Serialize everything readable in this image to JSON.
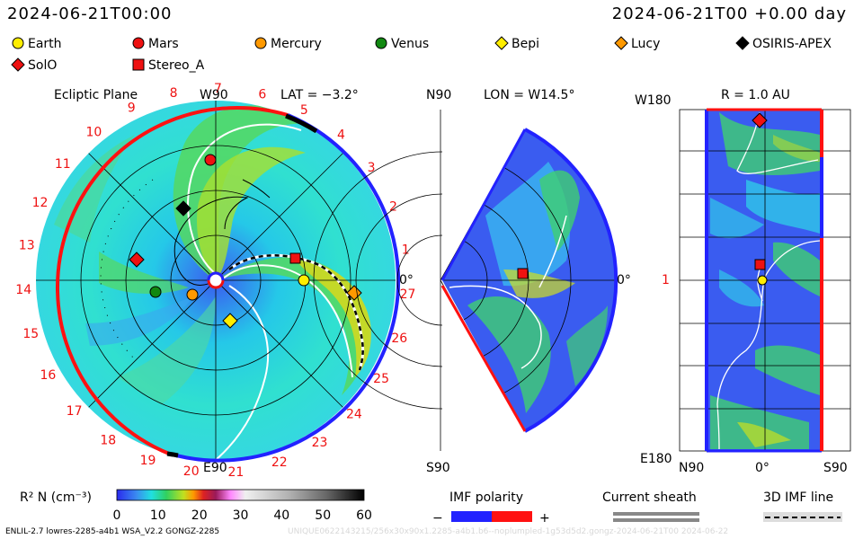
{
  "header": {
    "datetime_left": "2024-06-21T00:00",
    "datetime_right": "2024-06-21T00 +0.00 day"
  },
  "legend": {
    "items": [
      {
        "label": "Earth",
        "color": "#ffee00",
        "shape": "circle"
      },
      {
        "label": "Mars",
        "color": "#ee1111",
        "shape": "circle"
      },
      {
        "label": "Mercury",
        "color": "#ff9900",
        "shape": "circle"
      },
      {
        "label": "Venus",
        "color": "#118811",
        "shape": "circle"
      },
      {
        "label": "Bepi",
        "color": "#ffee00",
        "shape": "diamond"
      },
      {
        "label": "Lucy",
        "color": "#ff9900",
        "shape": "diamond"
      },
      {
        "label": "OSIRIS-APEX",
        "color": "#000000",
        "shape": "diamond"
      },
      {
        "label": "SolO",
        "color": "#ee1111",
        "shape": "diamond"
      },
      {
        "label": "Stereo_A",
        "color": "#ee1111",
        "shape": "square"
      }
    ]
  },
  "panels": {
    "ecliptic": {
      "title": "Ecliptic Plane",
      "lat_label": "LAT = −3.2°",
      "top_label": "W90",
      "bottom_label": "E90",
      "right_label": "0°",
      "carrington": [
        "1",
        "2",
        "3",
        "4",
        "5",
        "6",
        "7",
        "8",
        "9",
        "10",
        "11",
        "12",
        "13",
        "14",
        "15",
        "16",
        "17",
        "18",
        "19",
        "20",
        "21",
        "22",
        "23",
        "24",
        "25",
        "26",
        "27"
      ]
    },
    "meridional": {
      "lon_label": "LON = W14.5°",
      "top_label": "N90",
      "bottom_label": "S90",
      "right_label": "0°"
    },
    "radial": {
      "title": "R = 1.0 AU",
      "top_label": "W180",
      "bottom_label": "E180",
      "mid_label": "1",
      "x_labels": [
        "N90",
        "0°",
        "S90"
      ]
    }
  },
  "colorbar": {
    "label": "R² N (cm⁻³)",
    "ticks": [
      "0",
      "10",
      "20",
      "30",
      "40",
      "50",
      "60"
    ],
    "min": 0,
    "max": 60
  },
  "key": {
    "imf_polarity": "IMF polarity",
    "minus": "−",
    "plus": "+",
    "current_sheath": "Current sheath",
    "imf_line": "3D IMF line"
  },
  "footer": {
    "left": "ENLIL-2.7 lowres-2285-a4b1 WSA_V2.2 GONGZ-2285",
    "right": "UNIQUE0622143215/256x30x90x1.2285-a4b1.b6--noplumpled-1g53d5d2.gongz-2024-06-21T00   2024-06-22"
  },
  "chart_data": {
    "type": "heatmap",
    "quantity": "R² N (cm⁻³)",
    "color_range": [
      0,
      60
    ],
    "bodies": [
      "Earth",
      "Mars",
      "Mercury",
      "Venus",
      "Bepi",
      "Lucy",
      "OSIRIS-APEX",
      "SolO",
      "Stereo_A"
    ]
  }
}
